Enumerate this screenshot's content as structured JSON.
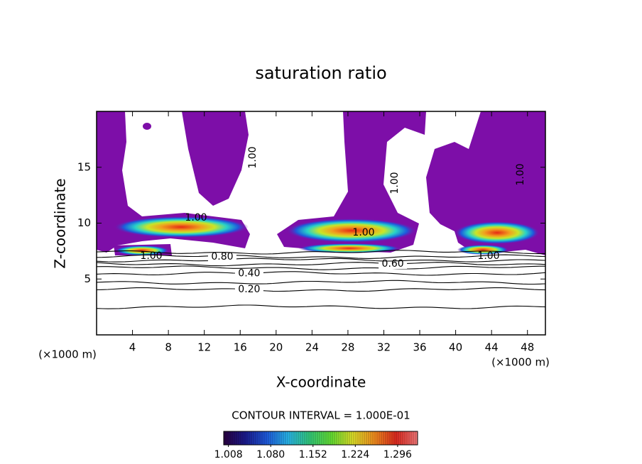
{
  "chart_data": {
    "type": "contour",
    "title": "saturation ratio",
    "x_label": "X-coordinate",
    "y_label": "Z-coordinate",
    "x_unit": "(×1000 m)",
    "y_unit": "(×1000 m)",
    "xlim": [
      0,
      50
    ],
    "ylim": [
      0,
      20
    ],
    "xticks": [
      4,
      8,
      12,
      16,
      20,
      24,
      28,
      32,
      36,
      40,
      44,
      48
    ],
    "yticks": [
      5,
      10,
      15
    ],
    "contours": {
      "levels": [
        0.1,
        0.2,
        0.3,
        0.4,
        0.5,
        0.6,
        0.7,
        0.8,
        0.9
      ],
      "z": [
        2.5,
        4.05,
        4.7,
        5.5,
        6.0,
        6.35,
        6.7,
        7.0,
        7.4
      ],
      "value_labels": [
        null,
        "0.20",
        null,
        "0.40",
        null,
        "0.60",
        null,
        "0.80",
        null
      ],
      "color": "#000000"
    },
    "supersaturation_label": "1.00",
    "supersaturated_color": "#7d0ea8",
    "contour_interval": "CONTOUR INTERVAL = 1.000E-01",
    "colorbar": {
      "ticks": [
        1.008,
        {
          "value": 1.08,
          "label": "1.080"
        },
        1.152,
        1.224,
        1.296
      ],
      "range": [
        1.0,
        1.33
      ],
      "colors": [
        "#2a0040",
        "#1a1a8c",
        "#1e5adc",
        "#28b4e6",
        "#32c878",
        "#64dc32",
        "#dcdc28",
        "#f08c1e",
        "#dc281e",
        "#f07878"
      ]
    }
  }
}
